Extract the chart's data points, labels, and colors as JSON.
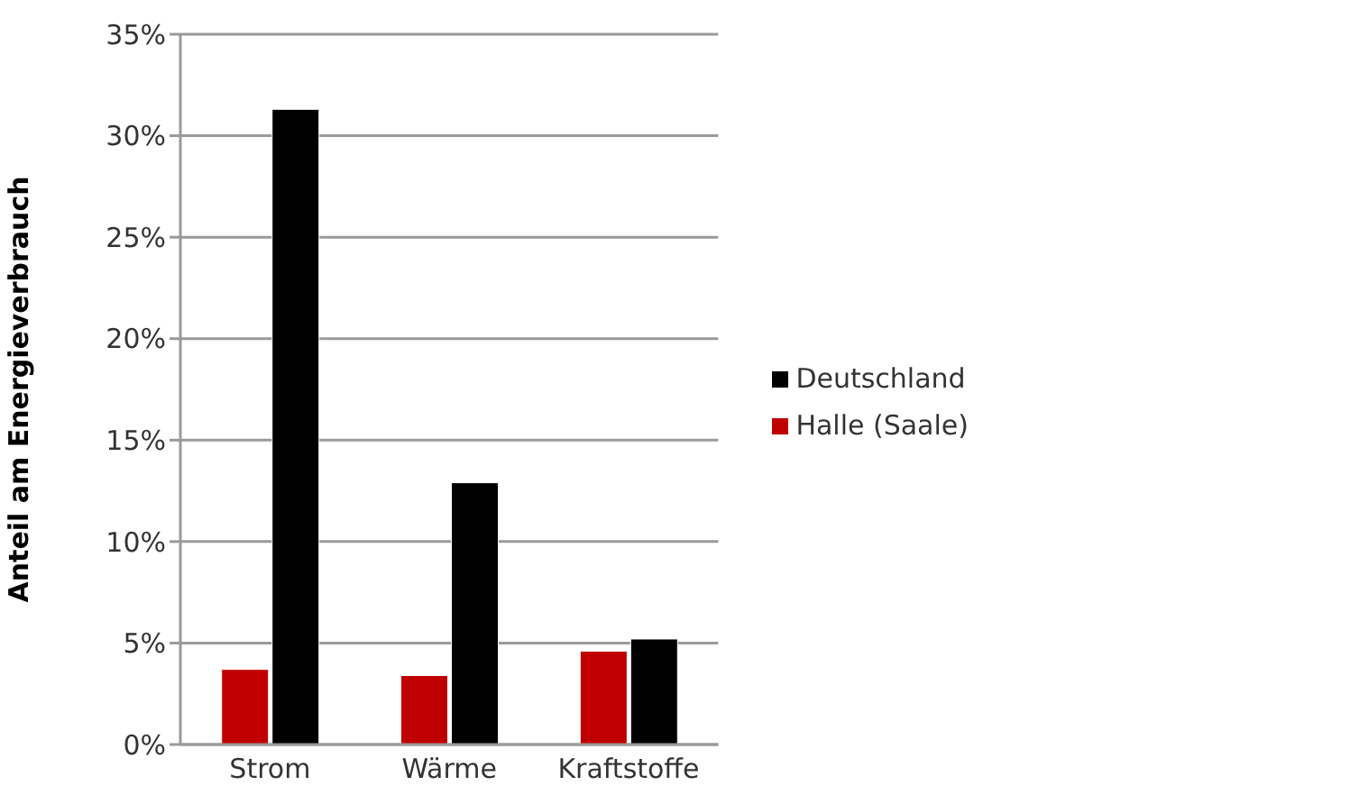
{
  "chart_data": {
    "type": "bar",
    "ylabel": "Anteil am Energieverbrauch",
    "categories": [
      "Strom",
      "Wärme",
      "Kraftstoffe"
    ],
    "series": [
      {
        "name": "Halle (Saale)",
        "color": "#c00000",
        "values": [
          3.7,
          3.4,
          4.6
        ]
      },
      {
        "name": "Deutschland",
        "color": "#000000",
        "values": [
          31.3,
          12.9,
          5.2
        ]
      }
    ],
    "ylim": [
      0,
      35
    ],
    "yticks": [
      {
        "value": 0,
        "label": "0%"
      },
      {
        "value": 5,
        "label": "5%"
      },
      {
        "value": 10,
        "label": "10%"
      },
      {
        "value": 15,
        "label": "15%"
      },
      {
        "value": 20,
        "label": "20%"
      },
      {
        "value": 25,
        "label": "25%"
      },
      {
        "value": 30,
        "label": "30%"
      },
      {
        "value": 35,
        "label": "35%"
      }
    ],
    "grid": "y",
    "legend": "right"
  }
}
